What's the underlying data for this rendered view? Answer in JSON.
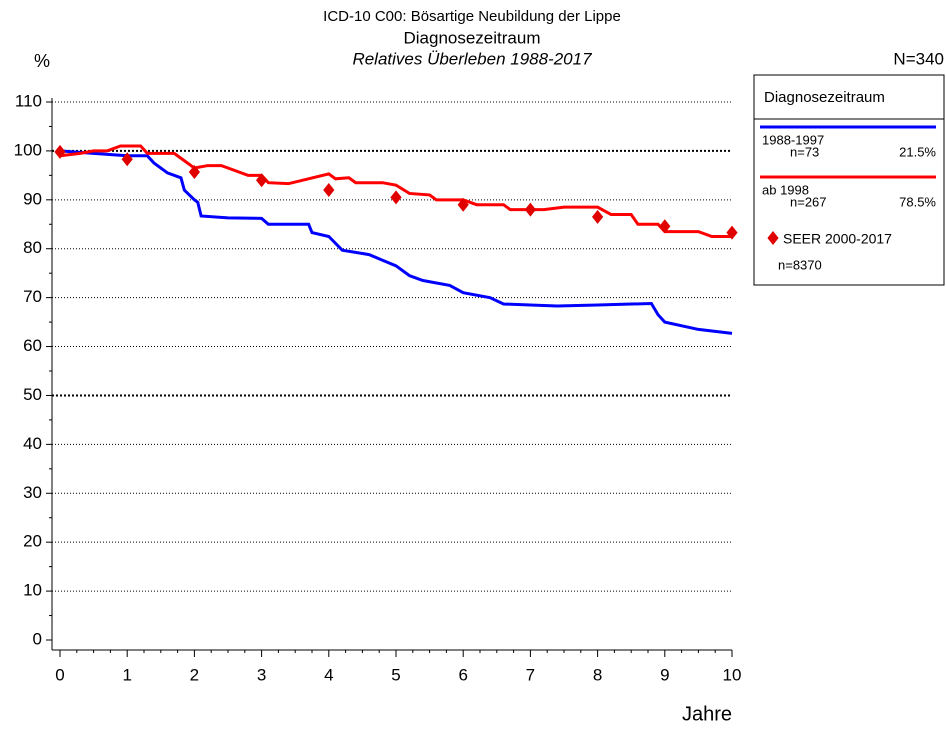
{
  "chart_data": {
    "type": "line",
    "title": "ICD-10 C00: Bösartige Neubildung der Lippe",
    "subtitle": "Diagnosezeitraum",
    "subtitle2": "Relatives Überleben 1988-2017",
    "y_label": "%",
    "x_label": "Jahre",
    "total": "N=340",
    "legend_title": "Diagnosezeitraum",
    "xlim": [
      0,
      10
    ],
    "xticks": [
      0,
      1,
      2,
      3,
      4,
      5,
      6,
      7,
      8,
      9,
      10
    ],
    "ylim": [
      0,
      110
    ],
    "yticks": [
      0,
      10,
      20,
      30,
      40,
      50,
      60,
      70,
      80,
      90,
      100,
      110
    ],
    "grid": true,
    "major_grid": [
      50,
      100
    ],
    "series": [
      {
        "name": "1988-1997",
        "n": "n=73",
        "share": "21.5%",
        "color": "#0000ff",
        "style": "line",
        "x": [
          0,
          0.5,
          1,
          1.3,
          1.4,
          1.6,
          1.8,
          1.85,
          2,
          2.05,
          2.1,
          2.5,
          3,
          3.1,
          3.7,
          3.75,
          4,
          4.2,
          4.6,
          5,
          5.2,
          5.4,
          5.8,
          6,
          6.4,
          6.6,
          7,
          7.4,
          8,
          8.8,
          8.9,
          9,
          9.5,
          10
        ],
        "values": [
          100,
          99.5,
          99,
          99,
          97.5,
          95.5,
          94.5,
          92,
          90,
          89.5,
          86.7,
          86.3,
          86.2,
          85,
          85,
          83.3,
          82.5,
          79.7,
          78.8,
          76.5,
          74.5,
          73.5,
          72.5,
          71,
          70,
          68.7,
          68.5,
          68.3,
          68.5,
          68.8,
          66.5,
          65,
          63.5,
          62.7
        ]
      },
      {
        "name": "ab 1998",
        "n": "n=267",
        "share": "78.5%",
        "color": "#ff0000",
        "style": "line",
        "x": [
          0,
          0.3,
          0.5,
          0.7,
          0.9,
          1.2,
          1.3,
          1.7,
          1.8,
          2,
          2.2,
          2.4,
          2.5,
          2.8,
          3,
          3.1,
          3.4,
          4,
          4.1,
          4.3,
          4.4,
          4.8,
          5,
          5.2,
          5.5,
          5.6,
          6,
          6.2,
          6.6,
          6.7,
          7.2,
          7.5,
          8,
          8.2,
          8.5,
          8.6,
          8.9,
          9,
          9.5,
          9.7,
          10
        ],
        "values": [
          99,
          99.5,
          100,
          100,
          101,
          101,
          99.5,
          99.5,
          98.5,
          96.5,
          97,
          97,
          96.5,
          95,
          95,
          93.5,
          93.3,
          95.3,
          94.3,
          94.5,
          93.5,
          93.5,
          93,
          91.3,
          91,
          90,
          90,
          89,
          89,
          88,
          88,
          88.5,
          88.5,
          87,
          87,
          85,
          85,
          83.5,
          83.5,
          82.5,
          82.5
        ]
      },
      {
        "name": "SEER 2000-2017",
        "n": "n=8370",
        "color": "#e00000",
        "style": "diamond",
        "x": [
          0,
          1,
          2,
          3,
          4,
          5,
          6,
          7,
          8,
          9,
          10
        ],
        "values": [
          99.8,
          98.3,
          95.7,
          94,
          92,
          90.5,
          89,
          88,
          86.5,
          84.6,
          83.3
        ]
      }
    ]
  }
}
